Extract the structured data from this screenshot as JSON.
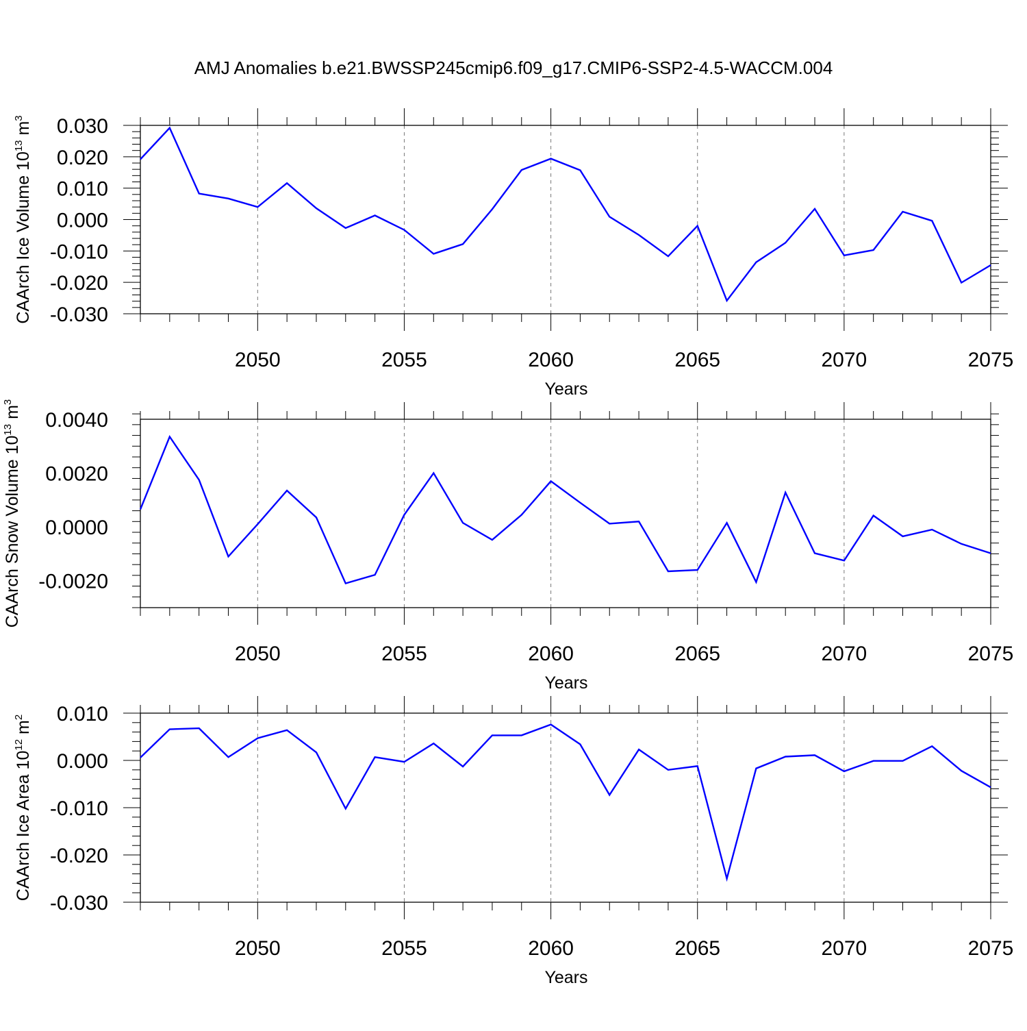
{
  "title": "AMJ Anomalies b.e21.BWSSP245cmip6.f09_g17.CMIP6-SSP2-4.5-WACCM.004",
  "line_color": "#0000ff",
  "chart_data": [
    {
      "type": "line",
      "ylabel": "CAArch Ice Volume 10",
      "ylabel_sup": "13",
      "ylabel_unit": "m",
      "ylabel_unit_sup": "3",
      "xlabel": "Years",
      "xlim": [
        2046,
        2075
      ],
      "ylim": [
        -0.03,
        0.03
      ],
      "xticks": [
        "2050",
        "2055",
        "2060",
        "2065",
        "2070",
        "2075"
      ],
      "xtick_values": [
        2050,
        2055,
        2060,
        2065,
        2070,
        2075
      ],
      "yticks": [
        "-0.030",
        "-0.020",
        "-0.010",
        "0.000",
        "0.010",
        "0.020",
        "0.030"
      ],
      "ytick_values": [
        -0.03,
        -0.02,
        -0.01,
        0.0,
        0.01,
        0.02,
        0.03
      ],
      "vgrid": "dashed at 2050, 2055, 2060, 2065, 2070",
      "x": [
        2046,
        2047,
        2048,
        2049,
        2050,
        2051,
        2052,
        2053,
        2054,
        2055,
        2056,
        2057,
        2058,
        2059,
        2060,
        2061,
        2062,
        2063,
        2064,
        2065,
        2066,
        2067,
        2068,
        2069,
        2070,
        2071,
        2072,
        2073,
        2074,
        2075
      ],
      "y": [
        0.0192,
        0.0292,
        0.0083,
        0.0067,
        0.004,
        0.0116,
        0.0036,
        -0.0027,
        0.0013,
        -0.0033,
        -0.0109,
        -0.0078,
        0.0033,
        0.0158,
        0.0194,
        0.0157,
        0.0009,
        -0.0049,
        -0.0117,
        -0.002,
        -0.0258,
        -0.0136,
        -0.0074,
        0.0034,
        -0.0114,
        -0.0097,
        0.0025,
        -0.0004,
        -0.0201,
        -0.0145
      ]
    },
    {
      "type": "line",
      "ylabel": "CAArch Snow Volume 10",
      "ylabel_sup": "13",
      "ylabel_unit": "m",
      "ylabel_unit_sup": "3",
      "xlabel": "Years",
      "xlim": [
        2046,
        2075
      ],
      "ylim": [
        -0.003,
        0.004
      ],
      "xticks": [
        "2050",
        "2055",
        "2060",
        "2065",
        "2070",
        "2075"
      ],
      "xtick_values": [
        2050,
        2055,
        2060,
        2065,
        2070,
        2075
      ],
      "yticks": [
        "-0.0020",
        "0.0000",
        "0.0020",
        "0.0040"
      ],
      "ytick_values": [
        -0.002,
        0.0,
        0.002,
        0.004
      ],
      "vgrid": "dashed at 2050, 2055, 2060, 2065, 2070",
      "x": [
        2046,
        2047,
        2048,
        2049,
        2050,
        2051,
        2052,
        2053,
        2054,
        2055,
        2056,
        2057,
        2058,
        2059,
        2060,
        2061,
        2062,
        2063,
        2064,
        2065,
        2066,
        2067,
        2068,
        2069,
        2070,
        2071,
        2072,
        2073,
        2074,
        2075
      ],
      "y": [
        0.00065,
        0.00335,
        0.00175,
        -0.0011,
        0.0001,
        0.00135,
        0.00035,
        -0.0021,
        -0.00178,
        0.00045,
        0.002,
        0.00015,
        -0.00048,
        0.00045,
        0.0017,
        0.0009,
        0.00012,
        0.0002,
        -0.00165,
        -0.0016,
        0.00015,
        -0.00205,
        0.00128,
        -0.00098,
        -0.00125,
        0.00042,
        -0.00035,
        -0.0001,
        -0.00063,
        -0.00098
      ]
    },
    {
      "type": "line",
      "ylabel": "CAArch Ice Area 10",
      "ylabel_sup": "12",
      "ylabel_unit": "m",
      "ylabel_unit_sup": "2",
      "xlabel": "Years",
      "xlim": [
        2046,
        2075
      ],
      "ylim": [
        -0.03,
        0.01
      ],
      "xticks": [
        "2050",
        "2055",
        "2060",
        "2065",
        "2070",
        "2075"
      ],
      "xtick_values": [
        2050,
        2055,
        2060,
        2065,
        2070,
        2075
      ],
      "yticks": [
        "-0.030",
        "-0.020",
        "-0.010",
        "0.000",
        "0.010"
      ],
      "ytick_values": [
        -0.03,
        -0.02,
        -0.01,
        0.0,
        0.01
      ],
      "vgrid": "dashed at 2050, 2055, 2060, 2065, 2070",
      "x": [
        2046,
        2047,
        2048,
        2049,
        2050,
        2051,
        2052,
        2053,
        2054,
        2055,
        2056,
        2057,
        2058,
        2059,
        2060,
        2061,
        2062,
        2063,
        2064,
        2065,
        2066,
        2067,
        2068,
        2069,
        2070,
        2071,
        2072,
        2073,
        2074,
        2075
      ],
      "y": [
        0.0006,
        0.0066,
        0.0068,
        0.0007,
        0.0047,
        0.0064,
        0.0017,
        -0.0102,
        0.0007,
        -0.0003,
        0.0036,
        -0.0013,
        0.0053,
        0.0053,
        0.0076,
        0.0034,
        -0.0073,
        0.0023,
        -0.002,
        -0.0012,
        -0.025,
        -0.0017,
        0.0008,
        0.0011,
        -0.0023,
        -0.0001,
        -0.0001,
        0.003,
        -0.0022,
        -0.0057
      ]
    }
  ]
}
